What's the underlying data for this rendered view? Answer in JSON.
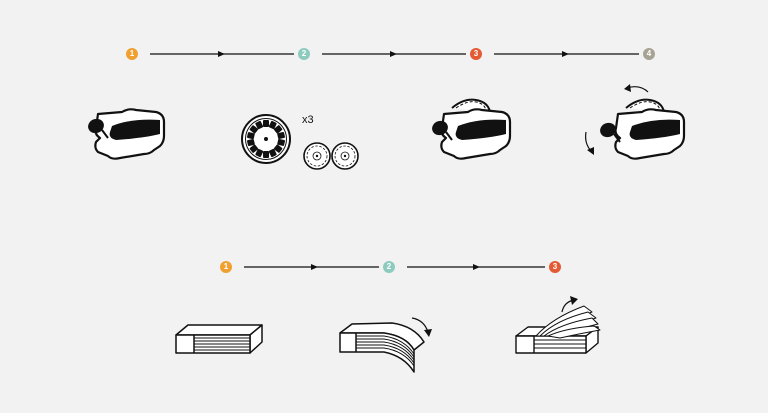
{
  "colors": {
    "background": "#f2f2f2",
    "ink": "#111111",
    "step1": "#f0a030",
    "step2": "#8ccbbd",
    "step3": "#e35a33",
    "step4": "#a6a394"
  },
  "viewmaster_sequence": {
    "steps": [
      {
        "number": "1",
        "color": "#f0a030",
        "illustration": "viewmaster-viewer"
      },
      {
        "number": "2",
        "color": "#8ccbbd",
        "illustration": "reel-discs"
      },
      {
        "number": "3",
        "color": "#e35a33",
        "illustration": "viewer-with-reel"
      },
      {
        "number": "4",
        "color": "#a6a394",
        "illustration": "viewer-with-rotation-arrows"
      }
    ],
    "reel_count_label": "x3"
  },
  "flipbook_sequence": {
    "steps": [
      {
        "number": "1",
        "color": "#f0a030",
        "illustration": "flat-flipbook"
      },
      {
        "number": "2",
        "color": "#8ccbbd",
        "illustration": "bent-flipbook"
      },
      {
        "number": "3",
        "color": "#e35a33",
        "illustration": "flipping-pages"
      }
    ]
  }
}
